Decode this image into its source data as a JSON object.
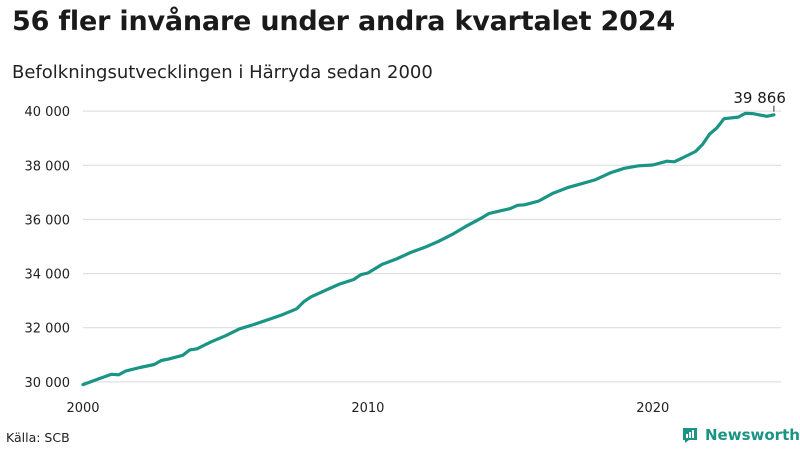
{
  "title": "56 fler invånare under andra kvartalet 2024",
  "subtitle": "Befolkningsutvecklingen i Härryda sedan 2000",
  "source": "Källa: SCB",
  "brand": "Newsworthy",
  "colors": {
    "line": "#1a9485",
    "grid": "#d9d9d9",
    "brand": "#1a9485"
  },
  "chart_data": {
    "type": "line",
    "title": "56 fler invånare under andra kvartalet 2024",
    "subtitle": "Befolkningsutvecklingen i Härryda sedan 2000",
    "xlabel": "",
    "ylabel": "",
    "xlim": [
      2000,
      2024.5
    ],
    "ylim": [
      29700,
      40300
    ],
    "x_ticks": [
      2000,
      2010,
      2020
    ],
    "x_tick_labels": [
      "2000",
      "2010",
      "2020"
    ],
    "y_ticks": [
      30000,
      32000,
      34000,
      36000,
      38000,
      40000
    ],
    "y_tick_labels": [
      "30 000",
      "32 000",
      "34 000",
      "36 000",
      "38 000",
      "40 000"
    ],
    "grid": "horizontal",
    "legend": "none",
    "end_label": "39 866",
    "series": [
      {
        "x": [
          2000.0,
          2000.5,
          2001.0,
          2001.25,
          2001.5,
          2002.0,
          2002.5,
          2002.75,
          2003.0,
          2003.5,
          2003.75,
          2004.0,
          2004.5,
          2005.0,
          2005.5,
          2006.0,
          2006.5,
          2007.0,
          2007.5,
          2007.75,
          2008.0,
          2008.5,
          2009.0,
          2009.5,
          2009.75,
          2010.0,
          2010.5,
          2011.0,
          2011.5,
          2012.0,
          2012.5,
          2013.0,
          2013.5,
          2014.0,
          2014.25,
          2014.5,
          2015.0,
          2015.25,
          2015.5,
          2016.0,
          2016.5,
          2017.0,
          2017.5,
          2018.0,
          2018.5,
          2019.0,
          2019.5,
          2020.0,
          2020.5,
          2020.75,
          2021.0,
          2021.5,
          2021.75,
          2022.0,
          2022.25,
          2022.5,
          2023.0,
          2023.25,
          2023.5,
          2024.0,
          2024.25
        ],
        "values": [
          29900,
          30090,
          30280,
          30260,
          30400,
          30530,
          30640,
          30790,
          30840,
          30980,
          31180,
          31220,
          31480,
          31700,
          31960,
          32120,
          32300,
          32480,
          32700,
          32960,
          33140,
          33380,
          33610,
          33780,
          33960,
          34020,
          34340,
          34540,
          34780,
          34970,
          35200,
          35470,
          35780,
          36060,
          36220,
          36280,
          36400,
          36520,
          36540,
          36680,
          36970,
          37170,
          37320,
          37470,
          37720,
          37890,
          37980,
          38010,
          38150,
          38130,
          38250,
          38510,
          38780,
          39160,
          39380,
          39720,
          39780,
          39920,
          39910,
          39810,
          39866
        ]
      }
    ]
  }
}
